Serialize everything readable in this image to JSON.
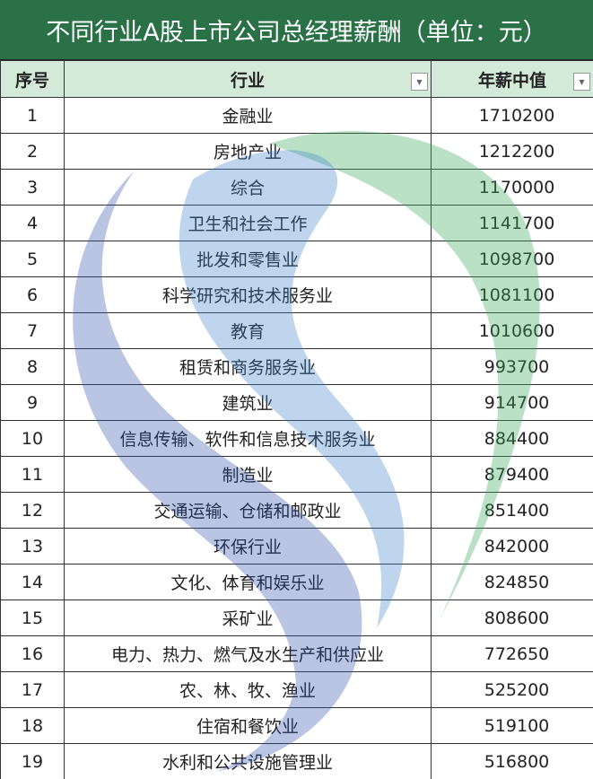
{
  "title": "不同行业A股上市公司总经理薪酬（单位：元）",
  "headers": {
    "index": "序号",
    "industry": "行业",
    "salary": "年薪中值"
  },
  "rows": [
    {
      "index": "1",
      "industry": "金融业",
      "salary": "1710200"
    },
    {
      "index": "2",
      "industry": "房地产业",
      "salary": "1212200"
    },
    {
      "index": "3",
      "industry": "综合",
      "salary": "1170000"
    },
    {
      "index": "4",
      "industry": "卫生和社会工作",
      "salary": "1141700"
    },
    {
      "index": "5",
      "industry": "批发和零售业",
      "salary": "1098700"
    },
    {
      "index": "6",
      "industry": "科学研究和技术服务业",
      "salary": "1081100"
    },
    {
      "index": "7",
      "industry": "教育",
      "salary": "1010600"
    },
    {
      "index": "8",
      "industry": "租赁和商务服务业",
      "salary": "993700"
    },
    {
      "index": "9",
      "industry": "建筑业",
      "salary": "914700"
    },
    {
      "index": "10",
      "industry": "信息传输、软件和信息技术服务业",
      "salary": "884400"
    },
    {
      "index": "11",
      "industry": "制造业",
      "salary": "879400"
    },
    {
      "index": "12",
      "industry": "交通运输、仓储和邮政业",
      "salary": "851400"
    },
    {
      "index": "13",
      "industry": "环保行业",
      "salary": "842000"
    },
    {
      "index": "14",
      "industry": "文化、体育和娱乐业",
      "salary": "824850"
    },
    {
      "index": "15",
      "industry": "采矿业",
      "salary": "808600"
    },
    {
      "index": "16",
      "industry": "电力、热力、燃气及水生产和供应业",
      "salary": "772650"
    },
    {
      "index": "17",
      "industry": "农、林、牧、渔业",
      "salary": "525200"
    },
    {
      "index": "18",
      "industry": "住宿和餐饮业",
      "salary": "519100"
    },
    {
      "index": "19",
      "industry": "水利和公共设施管理业",
      "salary": "516800"
    }
  ],
  "colors": {
    "title_bg": "#2a7148",
    "header_bg": "#d3ead9"
  }
}
